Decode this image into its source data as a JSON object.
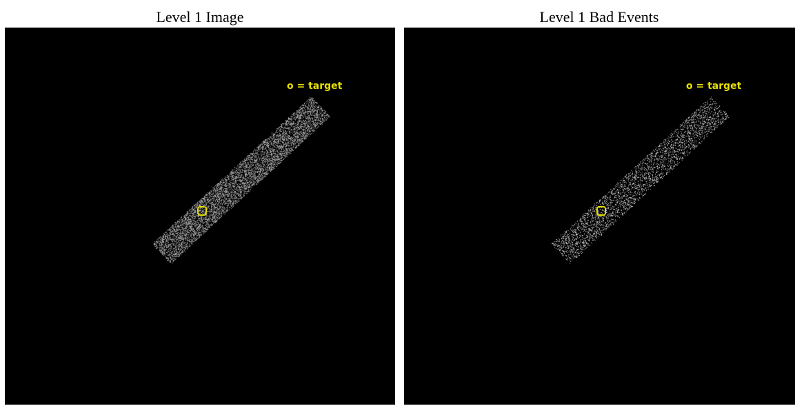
{
  "panels": [
    {
      "title": "Level 1 Image",
      "legend": "o = target",
      "density": 0.62,
      "brightness": 0.58
    },
    {
      "title": "Level 1 Bad Events",
      "legend": "o = target",
      "density": 0.28,
      "brightness": 0.72
    }
  ],
  "colors": {
    "background": "#000000",
    "accent": "#e6e000",
    "events": "#c8c8c8"
  }
}
